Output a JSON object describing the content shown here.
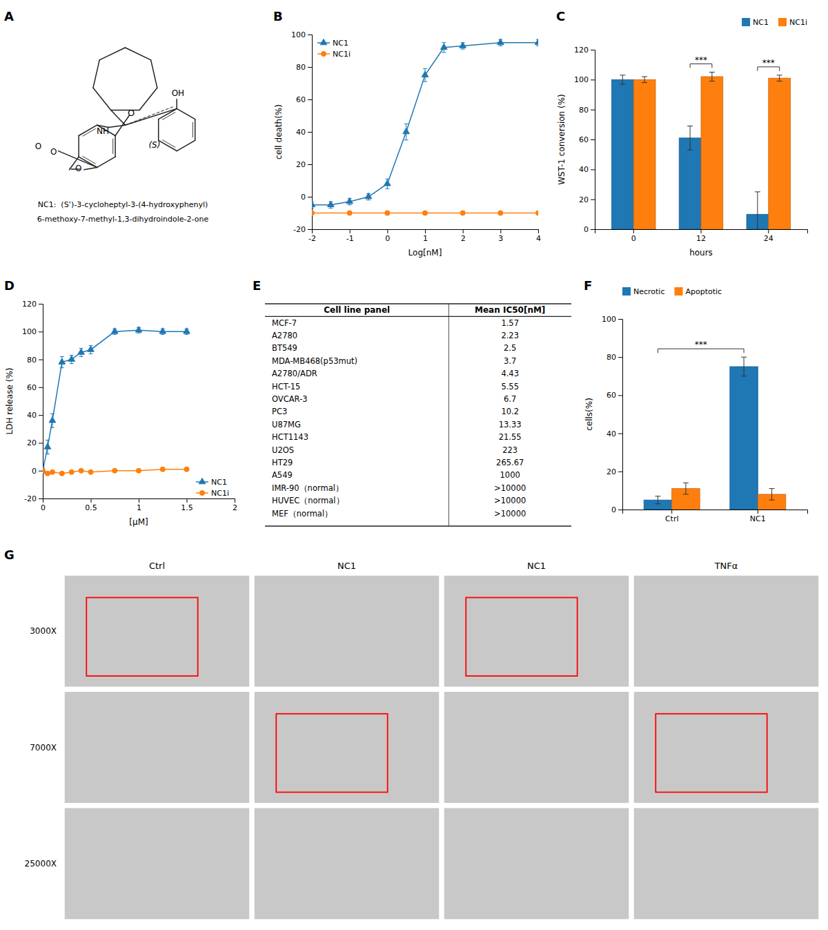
{
  "chart_data": [
    {
      "type": "structure",
      "title": "A",
      "annotations": [
        "OH",
        "O",
        "NH",
        "O",
        "O",
        "(S)",
        "NC1:  (S’)-3-cycloheptyl-3-(4-hydroxyphenyl)",
        "6-methoxy-7-methyl-1,3-dihydroindole-2-one",
        "O"
      ]
    },
    {
      "type": "line",
      "title": "B",
      "xlabel": "Log[nM]",
      "ylabel": "cell death(%)",
      "xlim": [
        -2,
        4
      ],
      "ylim": [
        -20,
        100
      ],
      "xticks": [
        -2,
        -1,
        0,
        1,
        2,
        3,
        4
      ],
      "yticks": [
        -20,
        0,
        20,
        40,
        60,
        80,
        100
      ],
      "legend": "upper left",
      "series": [
        {
          "name": "NC1",
          "marker": "triangle",
          "x": [
            -2,
            -1.5,
            -1,
            -0.5,
            0,
            0.5,
            1,
            1.5,
            2,
            3,
            4
          ],
          "values": [
            -5,
            -5,
            -3,
            0,
            8,
            40,
            75,
            92,
            93,
            95,
            95
          ],
          "errors": [
            2,
            2,
            2,
            2,
            3,
            5,
            4,
            3,
            2,
            2,
            2
          ]
        },
        {
          "name": "NC1i",
          "marker": "circle",
          "x": [
            -2,
            -1,
            0,
            1,
            2,
            3,
            4
          ],
          "values": [
            -10,
            -10,
            -10,
            -10,
            -10,
            -10,
            -10
          ],
          "errors": [
            1,
            1,
            1,
            1,
            1,
            1,
            1
          ]
        }
      ]
    },
    {
      "type": "bar",
      "title": "C",
      "xlabel": "hours",
      "ylabel": "WST-1 conversion (%)",
      "categories": [
        "0",
        "12",
        "24"
      ],
      "ylim": [
        0,
        120
      ],
      "yticks": [
        0,
        20,
        40,
        60,
        80,
        100,
        120
      ],
      "legend": "upper right",
      "series": [
        {
          "name": "NC1",
          "values": [
            100,
            61,
            10
          ],
          "errors": [
            3,
            8,
            15
          ]
        },
        {
          "name": "NC1i",
          "values": [
            100,
            102,
            101
          ],
          "errors": [
            2,
            3,
            2
          ]
        }
      ],
      "annotations": [
        {
          "text": "***",
          "between": [
            [
              "12",
              "NC1"
            ],
            [
              "12",
              "NC1i"
            ]
          ]
        },
        {
          "text": "***",
          "between": [
            [
              "24",
              "NC1"
            ],
            [
              "24",
              "NC1i"
            ]
          ]
        }
      ]
    },
    {
      "type": "line",
      "title": "D",
      "xlabel": "[μM]",
      "ylabel": "LDH release (%)",
      "xlim": [
        0,
        2
      ],
      "ylim": [
        -20,
        120
      ],
      "xticks": [
        0,
        0.5,
        1,
        1.5,
        2
      ],
      "yticks": [
        -20,
        0,
        20,
        40,
        60,
        80,
        100,
        120
      ],
      "legend": "lower right",
      "series": [
        {
          "name": "NC1",
          "marker": "triangle",
          "x": [
            0,
            0.05,
            0.1,
            0.2,
            0.3,
            0.4,
            0.5,
            0.75,
            1.0,
            1.25,
            1.5
          ],
          "values": [
            0,
            17,
            36,
            78,
            80,
            85,
            87,
            100,
            101,
            100,
            100
          ],
          "errors": [
            2,
            5,
            5,
            4,
            3,
            3,
            3,
            2,
            2,
            2,
            2
          ]
        },
        {
          "name": "NC1i",
          "marker": "circle",
          "x": [
            0,
            0.05,
            0.1,
            0.2,
            0.3,
            0.4,
            0.5,
            0.75,
            1.0,
            1.25,
            1.5
          ],
          "values": [
            0,
            -2,
            -1,
            -2,
            -1,
            0,
            -1,
            0,
            0,
            1,
            1
          ],
          "errors": [
            1,
            1,
            1,
            1,
            1,
            1,
            1,
            1,
            1,
            1,
            1
          ]
        }
      ]
    },
    {
      "type": "table",
      "title": "E",
      "columns": [
        "Cell line panel",
        "Mean IC50[nM]"
      ],
      "rows": [
        [
          "MCF-7",
          "1.57"
        ],
        [
          "A2780",
          "2.23"
        ],
        [
          "BT549",
          "2.5"
        ],
        [
          "MDA-MB468(p53mut)",
          "3.7"
        ],
        [
          "A2780/ADR",
          "4.43"
        ],
        [
          "HCT-15",
          "5.55"
        ],
        [
          "OVCAR-3",
          "6.7"
        ],
        [
          "PC3",
          "10.2"
        ],
        [
          "U87MG",
          "13.33"
        ],
        [
          "HCT1143",
          "21.55"
        ],
        [
          "U2OS",
          "223"
        ],
        [
          "HT29",
          "265.67"
        ],
        [
          "A549",
          "1000"
        ],
        [
          "IMR-90（normal）",
          ">10000"
        ],
        [
          "HUVEC（normal）",
          ">10000"
        ],
        [
          "MEF（normal）",
          ">10000"
        ]
      ]
    },
    {
      "type": "bar",
      "title": "F",
      "ylabel": "cells(%)",
      "categories": [
        "Ctrl",
        "NC1"
      ],
      "ylim": [
        0,
        100
      ],
      "yticks": [
        0,
        20,
        40,
        60,
        80,
        100
      ],
      "legend": "upper left",
      "series": [
        {
          "name": "Necrotic",
          "values": [
            5,
            75
          ],
          "errors": [
            2,
            5
          ]
        },
        {
          "name": "Apoptotic",
          "values": [
            11,
            8
          ],
          "errors": [
            3,
            3
          ]
        }
      ],
      "annotations": [
        {
          "text": "***",
          "between": [
            [
              "Ctrl",
              "Necrotic"
            ],
            [
              "NC1",
              "Necrotic"
            ]
          ]
        }
      ]
    },
    {
      "type": "image_grid",
      "title": "G",
      "categories": [
        "Ctrl",
        "NC1",
        "NC1",
        "TNFα"
      ],
      "row_labels": [
        "3000X",
        "7000X",
        "25000X"
      ],
      "color": "#c8c8c8"
    }
  ]
}
